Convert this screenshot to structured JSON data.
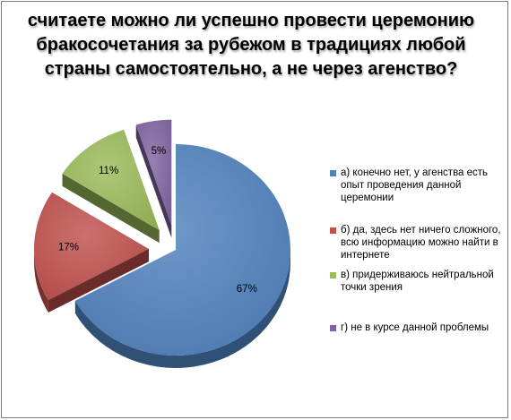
{
  "title": "считаете можно ли успешно провести церемонию бракосочетания за рубежом в традициях любой страны самостоятельно, а не через агенство?",
  "chart_data": {
    "type": "pie",
    "style": "exploded 3D",
    "title": "считаете можно ли успешно провести церемонию бракосочетания за рубежом в традициях любой страны самостоятельно, а не через агенство?",
    "legend_position": "right",
    "categories": [
      "а) конечно нет, у агенства есть опыт проведения данной церемонии",
      "б) да, здесь нет ничего сложного, всю информацию можно найти в интернете",
      "в) придерживаюсь нейтральной точки зрения",
      "г) не в курсе данной проблемы"
    ],
    "values": [
      67,
      17,
      11,
      5
    ],
    "data_labels": [
      "67%",
      "17%",
      "11%",
      "5%"
    ],
    "colors": [
      "#4f81bd",
      "#c0504d",
      "#9bbb59",
      "#8064a2"
    ]
  }
}
